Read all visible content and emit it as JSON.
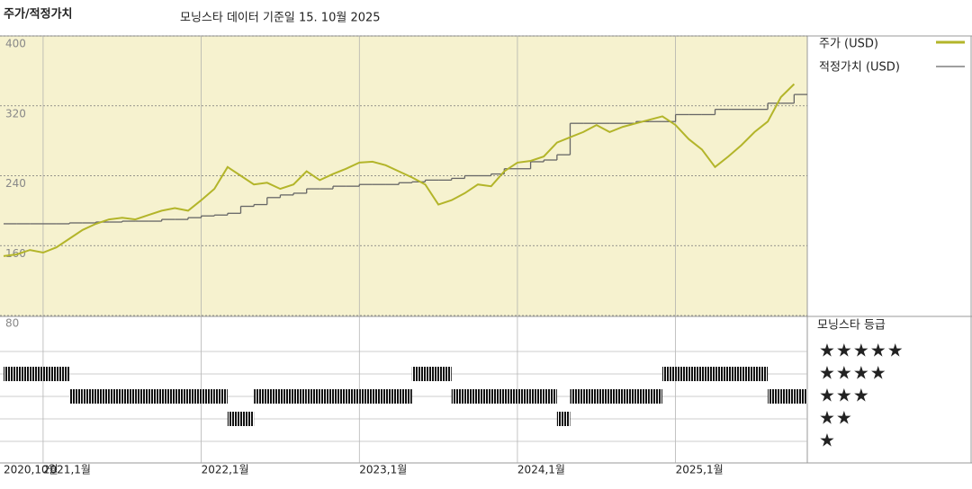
{
  "chart_data": {
    "type": "line",
    "title": "주가/적정가치",
    "subtitle": "모닝스타 데이터 기준일 15. 10월 2025",
    "x": [
      "2020-10",
      "2020-11",
      "2020-12",
      "2021-01",
      "2021-02",
      "2021-03",
      "2021-04",
      "2021-05",
      "2021-06",
      "2021-07",
      "2021-08",
      "2021-09",
      "2021-10",
      "2021-11",
      "2021-12",
      "2022-01",
      "2022-02",
      "2022-03",
      "2022-04",
      "2022-05",
      "2022-06",
      "2022-07",
      "2022-08",
      "2022-09",
      "2022-10",
      "2022-11",
      "2022-12",
      "2023-01",
      "2023-02",
      "2023-03",
      "2023-04",
      "2023-05",
      "2023-06",
      "2023-07",
      "2023-08",
      "2023-09",
      "2023-10",
      "2023-11",
      "2023-12",
      "2024-01",
      "2024-02",
      "2024-03",
      "2024-04",
      "2024-05",
      "2024-06",
      "2024-07",
      "2024-08",
      "2024-09",
      "2024-10",
      "2024-11",
      "2024-12",
      "2025-01",
      "2025-02",
      "2025-03",
      "2025-04",
      "2025-05",
      "2025-06",
      "2025-07",
      "2025-08",
      "2025-09",
      "2025-10"
    ],
    "series": [
      {
        "name": "주가 (USD)",
        "color": "#b3b52a",
        "values": [
          148,
          150,
          155,
          152,
          158,
          168,
          178,
          185,
          190,
          192,
          190,
          195,
          200,
          203,
          200,
          212,
          225,
          250,
          240,
          230,
          232,
          225,
          230,
          245,
          235,
          242,
          248,
          255,
          256,
          252,
          245,
          238,
          230,
          207,
          212,
          220,
          230,
          228,
          245,
          255,
          257,
          262,
          278,
          284,
          290,
          298,
          290,
          296,
          300,
          304,
          308,
          298,
          282,
          270,
          250,
          262,
          275,
          290,
          302,
          330,
          345
        ]
      },
      {
        "name": "적정가치 (USD)",
        "color": "#666666",
        "step": true,
        "values": [
          185,
          185,
          185,
          185,
          185,
          186,
          186,
          187,
          187,
          188,
          188,
          188,
          190,
          190,
          192,
          194,
          195,
          197,
          205,
          207,
          215,
          218,
          220,
          225,
          225,
          228,
          228,
          230,
          230,
          230,
          232,
          233,
          235,
          235,
          237,
          240,
          240,
          242,
          248,
          248,
          256,
          258,
          264,
          300,
          300,
          300,
          300,
          300,
          302,
          302,
          302,
          310,
          310,
          310,
          316,
          316,
          316,
          316,
          323,
          323,
          333
        ]
      }
    ],
    "xlim": [
      "2020-10",
      "2025-11"
    ],
    "xticks": [
      {
        "value": "2020-10",
        "label": "2020,10월"
      },
      {
        "value": "2021-01",
        "label": "2021,1월"
      },
      {
        "value": "2022-01",
        "label": "2022,1월"
      },
      {
        "value": "2023-01",
        "label": "2023,1월"
      },
      {
        "value": "2024-01",
        "label": "2024,1월"
      },
      {
        "value": "2025-01",
        "label": "2025,1월"
      }
    ],
    "ylim": [
      80,
      400
    ],
    "yticks": [
      80,
      160,
      240,
      320,
      400
    ],
    "grid": true,
    "rating": {
      "title": "모닝스타 등급",
      "labels": [
        "★",
        "★★",
        "★★★",
        "★★★★",
        "★★★★★"
      ],
      "values": [
        4,
        4,
        4,
        4,
        4,
        3,
        3,
        3,
        3,
        3,
        3,
        3,
        3,
        3,
        3,
        3,
        3,
        2,
        2,
        3,
        3,
        3,
        3,
        3,
        3,
        3,
        3,
        3,
        3,
        3,
        3,
        4,
        4,
        4,
        3,
        3,
        3,
        3,
        3,
        3,
        3,
        3,
        2,
        3,
        3,
        3,
        3,
        3,
        3,
        3,
        4,
        4,
        4,
        4,
        4,
        4,
        4,
        4,
        3,
        3,
        3
      ]
    }
  }
}
